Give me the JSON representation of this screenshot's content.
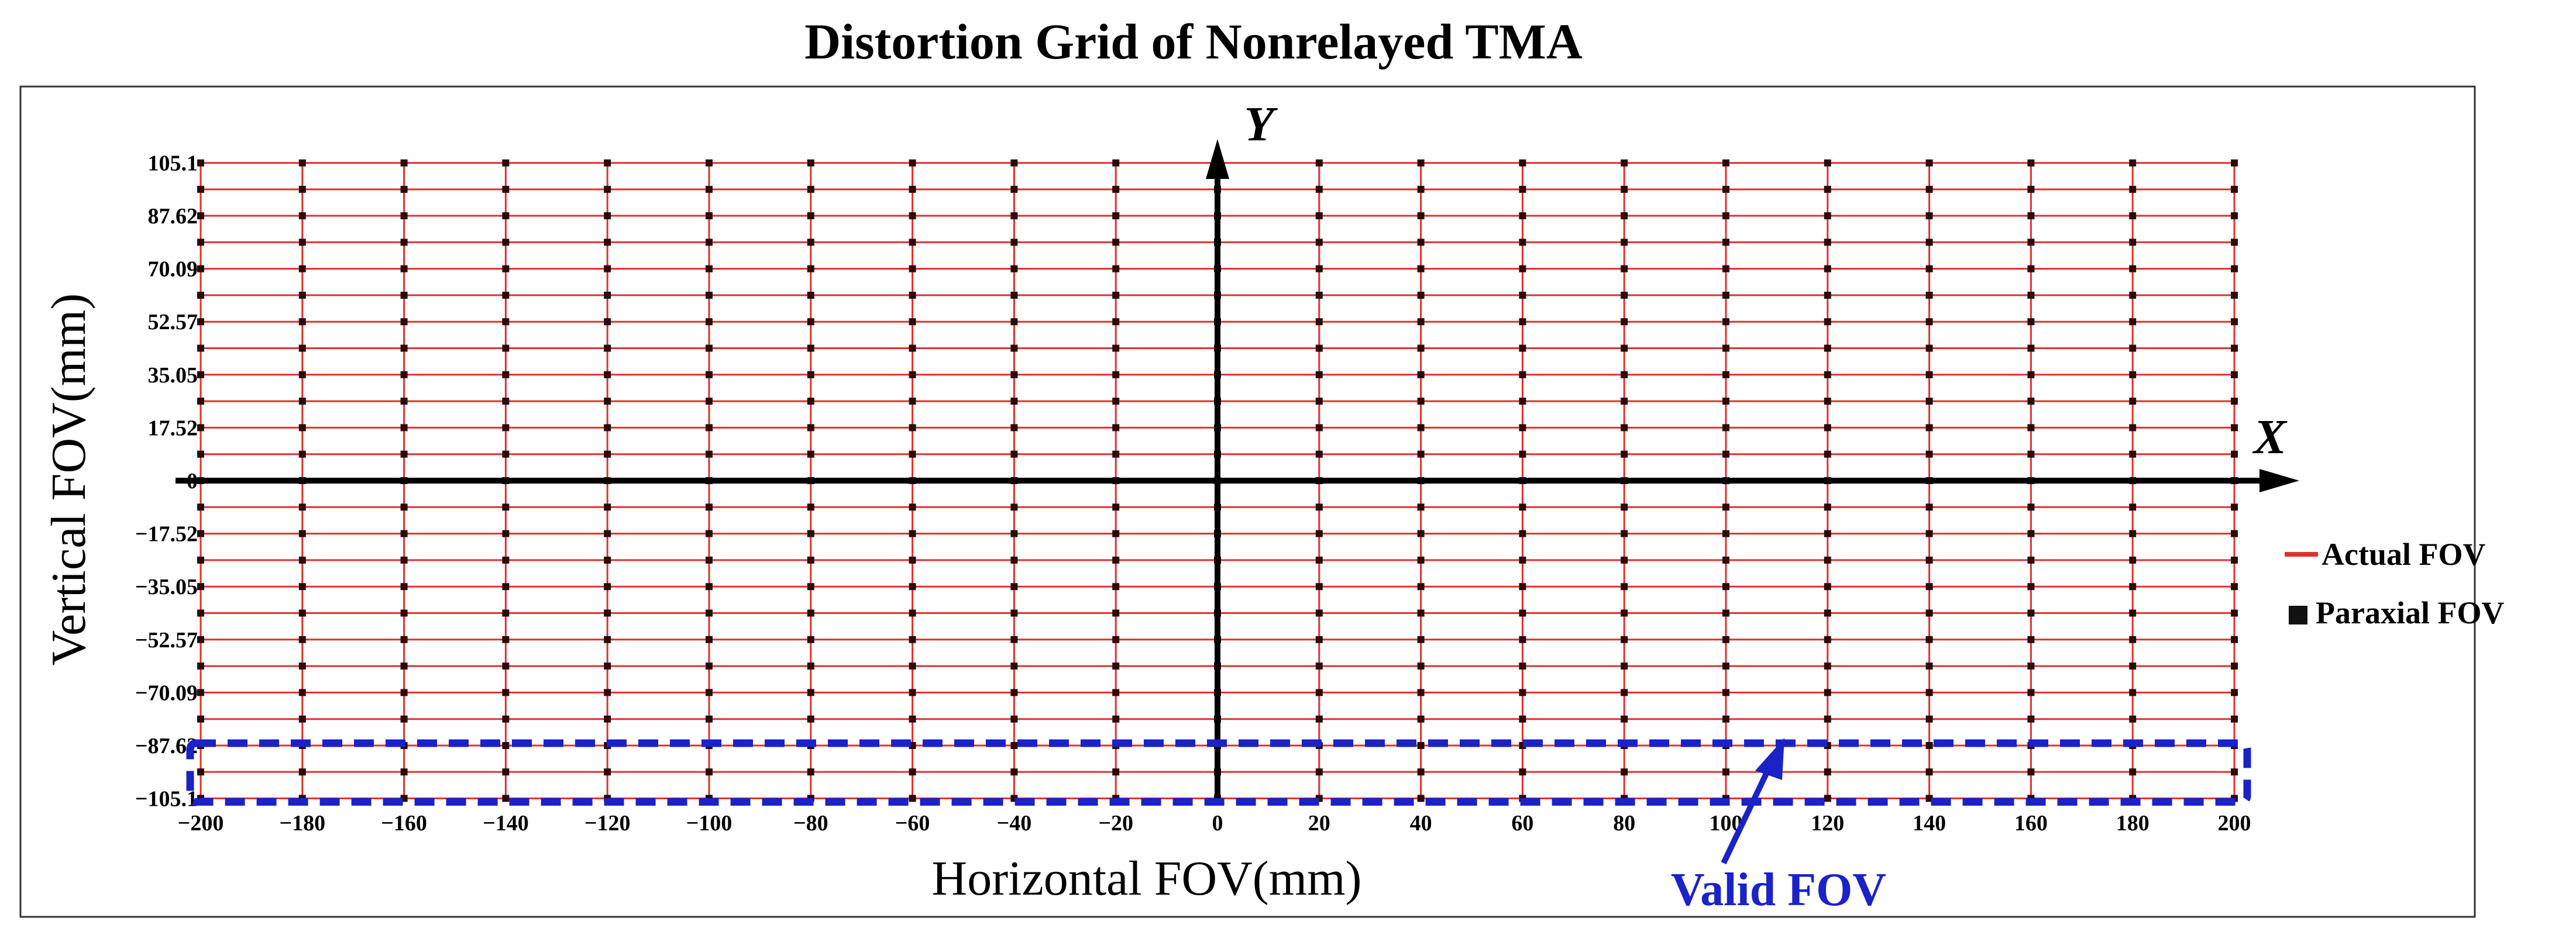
{
  "chart_data": {
    "type": "scatter",
    "title": "Distortion Grid of Nonrelayed TMA",
    "xlabel": "Horizontal FOV(mm)",
    "ylabel": "Vertical FOV(mm)",
    "x_axis_letter": "X",
    "y_axis_letter": "Y",
    "xlim": [
      -210,
      210
    ],
    "ylim": [
      -105.1,
      105.1
    ],
    "grid": true,
    "xticks": [
      -200,
      -180,
      -160,
      -140,
      -120,
      -100,
      -80,
      -60,
      -40,
      -20,
      0,
      20,
      40,
      60,
      80,
      100,
      120,
      140,
      160,
      180,
      200
    ],
    "xtick_labels": [
      "−200",
      "−180",
      "−160",
      "−140",
      "−120",
      "−100",
      "−80",
      "−60",
      "−40",
      "−20",
      "0",
      "20",
      "40",
      "60",
      "80",
      "100",
      "120",
      "140",
      "160",
      "180",
      "200"
    ],
    "yticks": [
      105.1,
      87.62,
      70.09,
      52.57,
      35.05,
      17.52,
      0,
      -17.52,
      -35.05,
      -52.57,
      -70.09,
      -87.62,
      -105.1
    ],
    "ytick_labels": [
      "105.1",
      "87.62",
      "70.09",
      "52.57",
      "35.05",
      "17.52",
      "0",
      "−17.52",
      "−35.05",
      "−52.57",
      "−70.09",
      "−87.62",
      "−105.1"
    ],
    "grid_x_values": [
      -200,
      -180,
      -160,
      -140,
      -120,
      -100,
      -80,
      -60,
      -40,
      -20,
      0,
      20,
      40,
      60,
      80,
      100,
      120,
      140,
      160,
      180,
      200
    ],
    "grid_y_values": [
      105.1,
      96.36,
      87.62,
      78.86,
      70.09,
      61.33,
      52.57,
      43.81,
      35.05,
      26.29,
      17.52,
      8.76,
      0,
      -8.76,
      -17.52,
      -26.29,
      -35.05,
      -43.81,
      -52.57,
      -61.33,
      -70.09,
      -78.86,
      -87.62,
      -96.36,
      -105.1
    ],
    "series": [
      {
        "name": "Actual FOV",
        "kind": "grid-lines",
        "color": "#e0302c"
      },
      {
        "name": "Paraxial FOV",
        "kind": "grid-points",
        "color": "#2a0a0a"
      }
    ],
    "legend": {
      "position": "right",
      "entries": [
        "Actual FOV",
        "Paraxial FOV"
      ]
    },
    "annotation": {
      "text": "Valid FOV",
      "color": "#1a22c8",
      "region_x": [
        -200,
        200
      ],
      "region_y": [
        -105.1,
        -87.62
      ]
    }
  }
}
